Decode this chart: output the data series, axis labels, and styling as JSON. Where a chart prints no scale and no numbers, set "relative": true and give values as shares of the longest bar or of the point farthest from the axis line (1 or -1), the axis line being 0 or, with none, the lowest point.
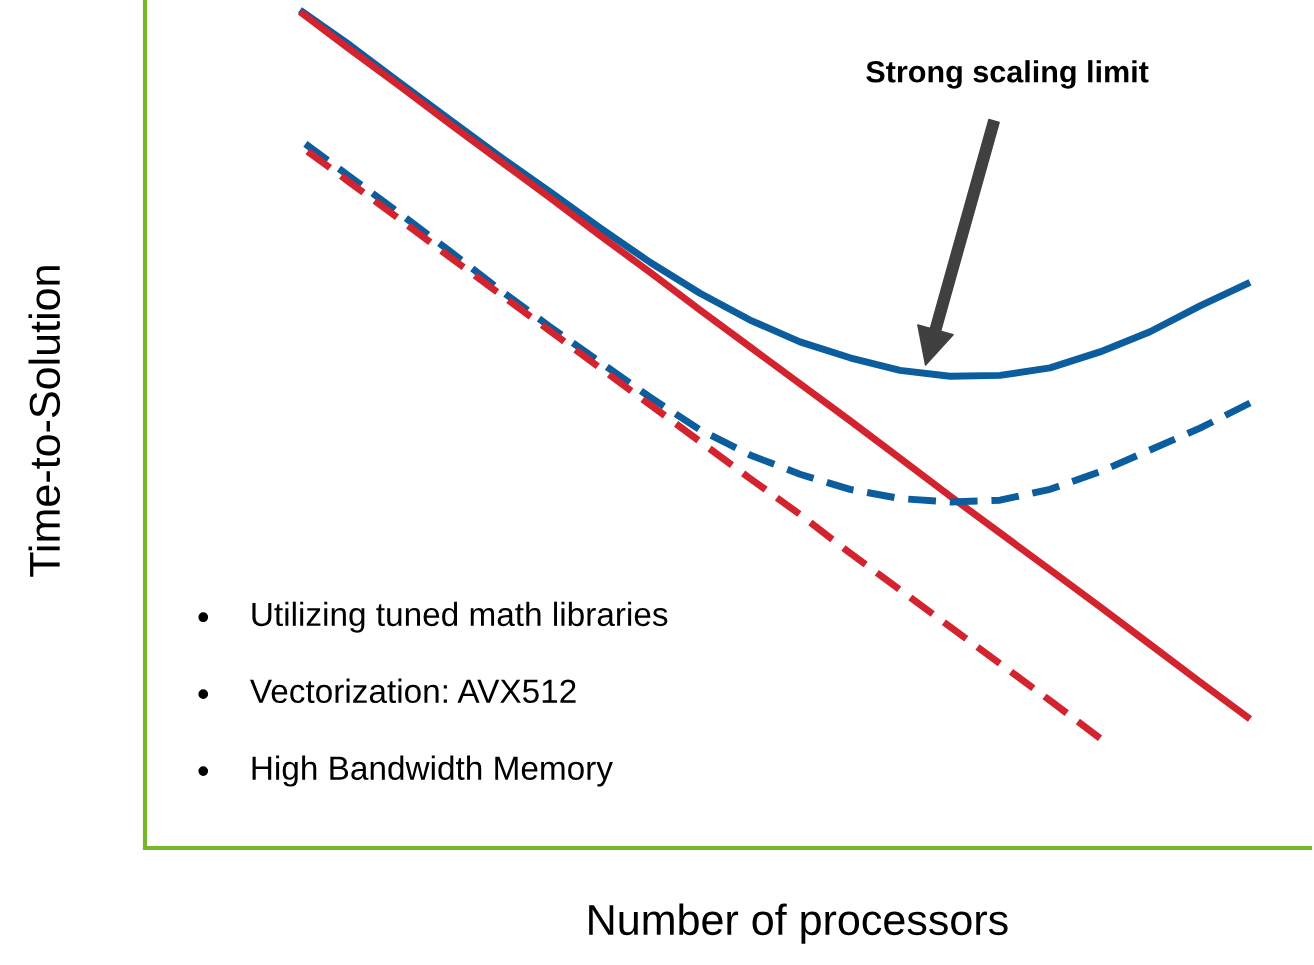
{
  "chart_data": {
    "type": "line",
    "relative": true,
    "xlabel": "Number of processors",
    "ylabel": "Time-to-Solution",
    "categories": [
      null,
      null,
      null,
      null,
      null,
      null,
      null,
      null,
      null,
      null,
      null,
      null,
      null,
      null,
      null,
      null,
      null,
      null,
      null,
      null
    ],
    "series": [
      {
        "color": "#0b5d9e",
        "line_style": "solid",
        "values": [
          1.0,
          0.958,
          0.913,
          0.869,
          0.825,
          0.783,
          0.74,
          0.699,
          0.662,
          0.63,
          0.604,
          0.585,
          0.57,
          0.563,
          0.564,
          0.573,
          0.592,
          0.616,
          0.647,
          0.675
        ]
      },
      {
        "color": "#d2232e",
        "line_style": "solid",
        "values": [
          0.998,
          0.953,
          0.909,
          0.864,
          0.82,
          0.776,
          0.731,
          0.687,
          0.642,
          0.598,
          0.554,
          0.51,
          0.465,
          0.42,
          0.376,
          0.332,
          0.288,
          0.243,
          0.198,
          0.154
        ]
      },
      {
        "color": "#0b5d9e",
        "line_style": "dashed",
        "values": [
          0.845,
          0.801,
          0.757,
          0.712,
          0.666,
          0.622,
          0.58,
          0.538,
          0.499,
          0.469,
          0.446,
          0.428,
          0.417,
          0.413,
          0.415,
          0.428,
          0.449,
          0.475,
          0.501,
          0.531
        ]
      },
      {
        "color": "#d2232e",
        "line_style": "dashed",
        "values": [
          0.838,
          0.794,
          0.75,
          0.705,
          0.661,
          0.617,
          0.573,
          0.529,
          0.485,
          0.441,
          0.398,
          0.352,
          0.308,
          0.264,
          0.22,
          0.176,
          0.131,
          null,
          null,
          null
        ]
      }
    ],
    "annotations": [
      "Strong scaling limit",
      "Utilizing tuned math libraries",
      "Vectorization: AVX512",
      "High Bandwidth Memory"
    ]
  }
}
